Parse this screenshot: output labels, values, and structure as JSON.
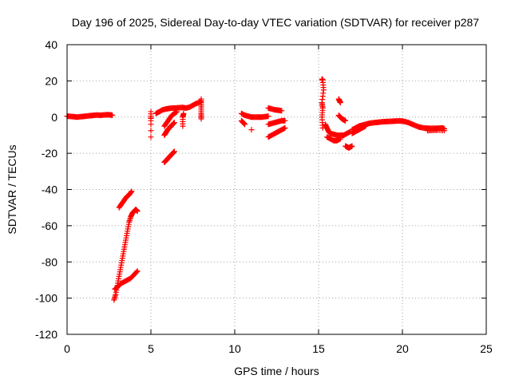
{
  "chart_data": {
    "type": "scatter",
    "title": "Day 196 of 2025, Sidereal Day-to-day VTEC variation (SDTVAR) for receiver p287",
    "xlabel": "GPS time / hours",
    "ylabel": "SDTVAR / TECUs",
    "xlim": [
      0,
      25
    ],
    "ylim": [
      -120,
      40
    ],
    "x_ticks": [
      0,
      5,
      10,
      15,
      20,
      25
    ],
    "y_ticks": [
      -120,
      -100,
      -80,
      -60,
      -40,
      -20,
      0,
      20,
      40
    ],
    "x_tick_labels": [
      "0",
      "5",
      "10",
      "15",
      "20",
      "25"
    ],
    "y_tick_labels": [
      "-120",
      "-100",
      "-80",
      "-60",
      "-40",
      "-20",
      "0",
      "20",
      "40"
    ],
    "grid": true,
    "marker": "plus",
    "series": [
      {
        "name": "p287",
        "color": "#ff0000",
        "segments": [
          [
            [
              0.0,
              0.5
            ],
            [
              0.2,
              0.4
            ],
            [
              0.4,
              0.2
            ],
            [
              0.6,
              0.0
            ],
            [
              0.8,
              0.2
            ],
            [
              1.0,
              0.4
            ],
            [
              1.2,
              0.6
            ],
            [
              1.4,
              0.8
            ],
            [
              1.6,
              1.0
            ],
            [
              1.8,
              1.1
            ],
            [
              2.0,
              1.0
            ],
            [
              2.2,
              1.2
            ],
            [
              2.4,
              1.3
            ],
            [
              2.6,
              1.2
            ],
            [
              2.7,
              1.0
            ]
          ],
          [
            [
              2.8,
              -101
            ],
            [
              2.9,
              -98
            ],
            [
              3.0,
              -93
            ],
            [
              3.1,
              -88
            ],
            [
              3.2,
              -83
            ],
            [
              3.3,
              -78
            ],
            [
              3.4,
              -73
            ],
            [
              3.5,
              -68
            ],
            [
              3.6,
              -63
            ],
            [
              3.7,
              -58
            ],
            [
              3.8,
              -55
            ],
            [
              3.9,
              -53
            ],
            [
              4.0,
              -52
            ],
            [
              4.1,
              -51
            ],
            [
              4.2,
              -52
            ]
          ],
          [
            [
              2.85,
              -95
            ],
            [
              3.0,
              -94
            ],
            [
              3.2,
              -92
            ],
            [
              3.4,
              -91
            ],
            [
              3.6,
              -90
            ],
            [
              3.8,
              -89
            ],
            [
              4.0,
              -87
            ],
            [
              4.2,
              -85
            ]
          ],
          [
            [
              3.1,
              -50
            ],
            [
              3.25,
              -48
            ],
            [
              3.4,
              -46
            ],
            [
              3.55,
              -44
            ],
            [
              3.7,
              -43
            ],
            [
              3.85,
              -41
            ]
          ],
          [
            [
              5.0,
              -11
            ],
            [
              5.0,
              3
            ],
            [
              5.0,
              -2
            ]
          ],
          [
            [
              5.3,
              2
            ],
            [
              5.5,
              3
            ],
            [
              5.7,
              4
            ],
            [
              5.9,
              4.5
            ],
            [
              6.1,
              4.8
            ],
            [
              6.3,
              5
            ],
            [
              6.5,
              5
            ],
            [
              6.7,
              5.2
            ],
            [
              6.9,
              5.3
            ],
            [
              7.1,
              5
            ],
            [
              7.3,
              5.5
            ],
            [
              7.5,
              6.5
            ],
            [
              7.7,
              7.5
            ],
            [
              7.9,
              8.2
            ],
            [
              8.0,
              9
            ]
          ],
          [
            [
              5.8,
              -25
            ],
            [
              5.9,
              -24
            ],
            [
              6.0,
              -23
            ],
            [
              6.1,
              -22
            ],
            [
              6.2,
              -21
            ],
            [
              6.3,
              -20
            ],
            [
              6.4,
              -19
            ]
          ],
          [
            [
              5.8,
              -10
            ],
            [
              5.9,
              -8.5
            ],
            [
              6.0,
              -7
            ],
            [
              6.1,
              -6
            ],
            [
              6.2,
              -5
            ],
            [
              6.3,
              -4
            ],
            [
              6.4,
              -3
            ]
          ],
          [
            [
              5.8,
              -5
            ],
            [
              5.95,
              -3
            ],
            [
              6.1,
              -1
            ],
            [
              6.25,
              1
            ],
            [
              6.4,
              2
            ],
            [
              6.55,
              3
            ]
          ],
          [
            [
              6.9,
              -5
            ],
            [
              6.9,
              0
            ],
            [
              6.95,
              2
            ]
          ],
          [
            [
              8.0,
              -1
            ],
            [
              8.0,
              2
            ],
            [
              8.0,
              6
            ],
            [
              8.0,
              10
            ]
          ],
          [
            [
              10.4,
              2
            ],
            [
              10.6,
              1
            ],
            [
              10.8,
              0.5
            ],
            [
              11.0,
              0
            ],
            [
              11.2,
              0
            ],
            [
              11.4,
              0
            ],
            [
              11.6,
              0
            ],
            [
              11.8,
              0.2
            ],
            [
              12.0,
              0.5
            ]
          ],
          [
            [
              10.4,
              -2
            ],
            [
              10.5,
              -3
            ],
            [
              10.6,
              -4
            ]
          ],
          [
            [
              11.0,
              -7
            ]
          ],
          [
            [
              12.0,
              5
            ],
            [
              12.2,
              4.5
            ],
            [
              12.4,
              4
            ],
            [
              12.6,
              3.8
            ],
            [
              12.8,
              3.5
            ]
          ],
          [
            [
              12.0,
              -4
            ],
            [
              12.2,
              -3.5
            ],
            [
              12.4,
              -3
            ],
            [
              12.6,
              -2.5
            ],
            [
              12.8,
              -2
            ],
            [
              13.0,
              -2
            ]
          ],
          [
            [
              12.0,
              -11
            ],
            [
              12.2,
              -10
            ],
            [
              12.4,
              -9
            ],
            [
              12.6,
              -8
            ],
            [
              12.8,
              -7
            ],
            [
              13.0,
              -6
            ]
          ],
          [
            [
              15.2,
              21
            ],
            [
              15.25,
              20.5
            ],
            [
              15.3,
              15
            ],
            [
              15.2,
              8
            ],
            [
              15.25,
              5
            ],
            [
              15.2,
              0
            ],
            [
              15.25,
              -6
            ]
          ],
          [
            [
              15.4,
              -4
            ],
            [
              15.5,
              -6
            ],
            [
              15.6,
              -8
            ],
            [
              15.7,
              -9
            ],
            [
              15.9,
              -9.5
            ],
            [
              16.1,
              -10
            ],
            [
              16.3,
              -10
            ],
            [
              16.5,
              -10
            ],
            [
              16.7,
              -9
            ],
            [
              16.9,
              -8
            ]
          ],
          [
            [
              15.5,
              -11
            ],
            [
              15.7,
              -12
            ],
            [
              15.9,
              -13
            ],
            [
              16.1,
              -13
            ],
            [
              16.3,
              -12
            ]
          ],
          [
            [
              16.2,
              10
            ],
            [
              16.25,
              9
            ],
            [
              16.3,
              8
            ]
          ],
          [
            [
              16.2,
              1
            ],
            [
              16.3,
              0
            ],
            [
              16.4,
              -1
            ],
            [
              16.5,
              -1.5
            ],
            [
              16.6,
              -2
            ]
          ],
          [
            [
              16.6,
              -16
            ],
            [
              16.7,
              -16.5
            ],
            [
              16.8,
              -17
            ],
            [
              16.9,
              -16.5
            ],
            [
              17.0,
              -16
            ]
          ],
          [
            [
              17.0,
              -7
            ],
            [
              17.2,
              -6
            ],
            [
              17.4,
              -5
            ],
            [
              17.6,
              -4.5
            ],
            [
              17.8,
              -4
            ],
            [
              18.0,
              -3.5
            ],
            [
              18.2,
              -3.2
            ],
            [
              18.4,
              -3
            ],
            [
              18.6,
              -2.8
            ],
            [
              18.8,
              -2.6
            ],
            [
              19.0,
              -2.5
            ],
            [
              19.2,
              -2.4
            ],
            [
              19.4,
              -2.3
            ],
            [
              19.6,
              -2.2
            ],
            [
              19.8,
              -2.1
            ],
            [
              20.0,
              -2.2
            ],
            [
              20.2,
              -2.6
            ],
            [
              20.4,
              -3.2
            ],
            [
              20.6,
              -4
            ],
            [
              20.8,
              -4.8
            ],
            [
              21.0,
              -5.5
            ],
            [
              21.2,
              -5.9
            ],
            [
              21.4,
              -6.1
            ],
            [
              21.6,
              -6.2
            ],
            [
              21.8,
              -6.2
            ],
            [
              22.0,
              -6.2
            ],
            [
              22.2,
              -6.1
            ],
            [
              22.4,
              -6
            ],
            [
              22.5,
              -6.5
            ]
          ],
          [
            [
              17.0,
              -9
            ],
            [
              17.2,
              -8
            ],
            [
              17.4,
              -7
            ],
            [
              17.6,
              -6
            ],
            [
              17.8,
              -5
            ]
          ],
          [
            [
              21.5,
              -7.5
            ],
            [
              21.8,
              -7.3
            ],
            [
              22.1,
              -7.2
            ],
            [
              22.5,
              -7.5
            ]
          ]
        ]
      }
    ]
  }
}
